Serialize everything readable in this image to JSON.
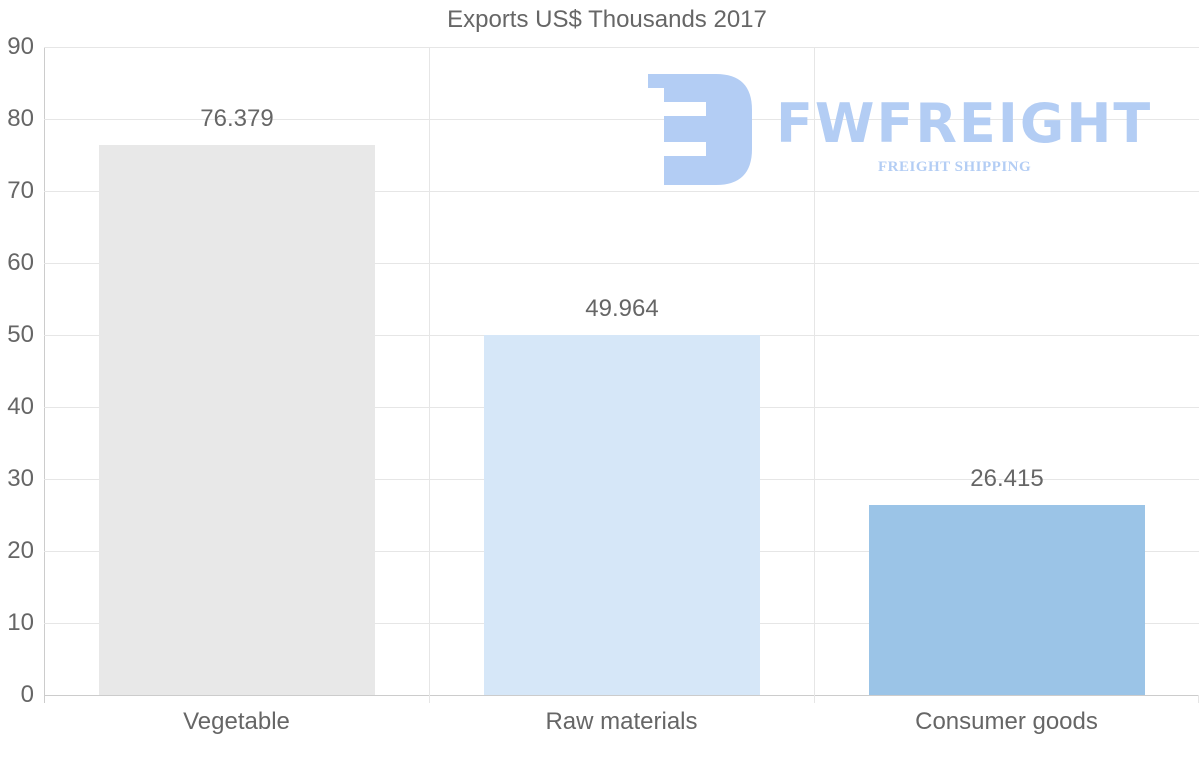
{
  "chart_data": {
    "type": "bar",
    "title": "Exports US$ Thousands 2017",
    "categories": [
      "Vegetable",
      "Raw materials",
      "Consumer goods"
    ],
    "values": [
      76.379,
      49.964,
      26.415
    ],
    "value_labels": [
      "76.379",
      "49.964",
      "26.415"
    ],
    "colors": [
      "#e8e8e8",
      "#d6e7f8",
      "#9bc4e7"
    ],
    "xlabel": "",
    "ylabel": "",
    "ylim": [
      0,
      90
    ],
    "yticks": [
      "90",
      "80",
      "70",
      "60",
      "50",
      "40",
      "30",
      "20",
      "10",
      "0"
    ],
    "grid": true,
    "legend": "none"
  },
  "watermark": {
    "brand": "FWFREIGHT",
    "tagline": "FREIGHT SHIPPING",
    "color": "#b3cdf4"
  }
}
